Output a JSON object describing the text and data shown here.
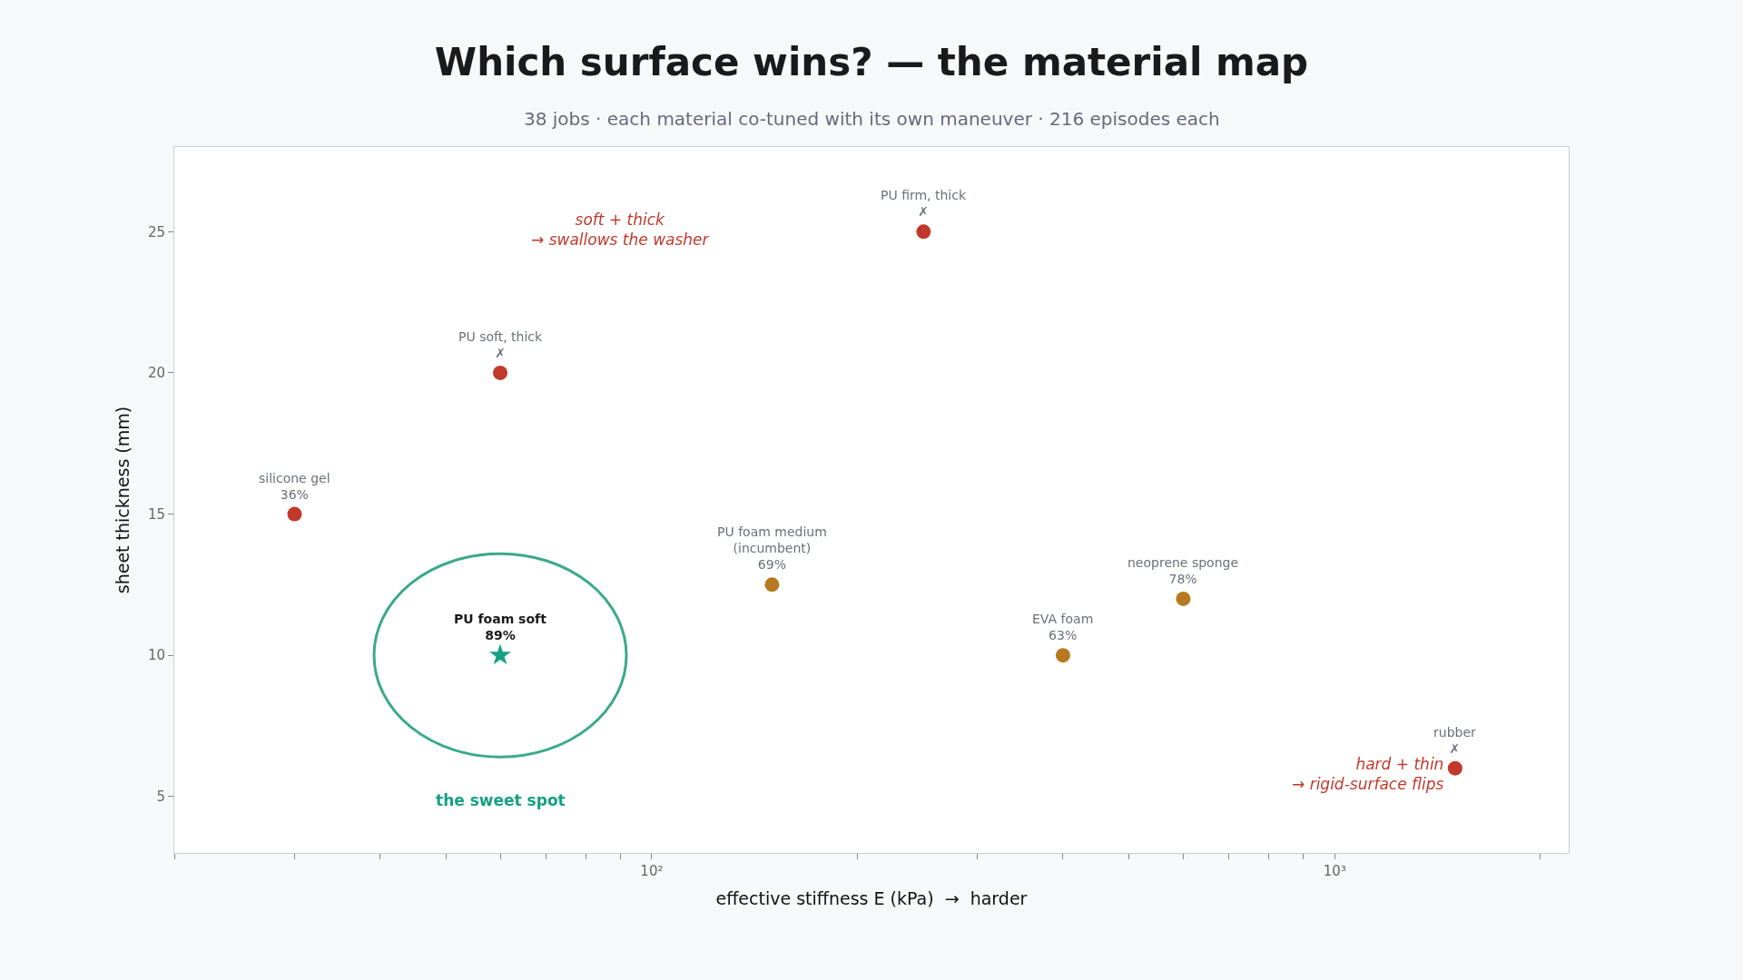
{
  "chart_data": {
    "type": "scatter",
    "title": "Which surface wins? — the material map",
    "subtitle": "38 jobs · each material co-tuned with its own maneuver · 216 episodes each",
    "xlabel": "effective stiffness E (kPa)  →  harder",
    "ylabel": "sheet thickness (mm)",
    "log": "x",
    "grid": false,
    "xlim": [
      20,
      2200
    ],
    "ylim": [
      3,
      28
    ],
    "xticks": [
      {
        "value": 20,
        "label": null
      },
      {
        "value": 30,
        "label": null
      },
      {
        "value": 40,
        "label": null
      },
      {
        "value": 50,
        "label": null
      },
      {
        "value": 60,
        "label": null
      },
      {
        "value": 70,
        "label": null
      },
      {
        "value": 80,
        "label": null
      },
      {
        "value": 90,
        "label": null
      },
      {
        "value": 100,
        "label": "10²"
      },
      {
        "value": 200,
        "label": null
      },
      {
        "value": 300,
        "label": null
      },
      {
        "value": 400,
        "label": null
      },
      {
        "value": 500,
        "label": null
      },
      {
        "value": 600,
        "label": null
      },
      {
        "value": 700,
        "label": null
      },
      {
        "value": 800,
        "label": null
      },
      {
        "value": 900,
        "label": null
      },
      {
        "value": 1000,
        "label": "10³"
      },
      {
        "value": 2000,
        "label": null
      }
    ],
    "yticks": [
      5,
      10,
      15,
      20,
      25
    ],
    "series": [
      {
        "color": "#c0392b",
        "marker": "circle",
        "x": [
          30,
          60,
          250,
          1500
        ],
        "values": [
          15,
          20,
          25,
          6
        ]
      },
      {
        "color": "#b7791f",
        "marker": "circle",
        "x": [
          150,
          400,
          600
        ],
        "values": [
          12.5,
          10,
          12
        ]
      },
      {
        "color": "#16a085",
        "marker": "star",
        "x": [
          60
        ],
        "values": [
          10
        ]
      }
    ],
    "annotations": [
      {
        "text": "silicone gel\n36%",
        "x": 30,
        "y": 15
      },
      {
        "text": "PU soft, thick\n✗",
        "x": 60,
        "y": 20
      },
      {
        "text": "PU firm, thick\n✗",
        "x": 250,
        "y": 25
      },
      {
        "text": "rubber\n✗",
        "x": 1500,
        "y": 6
      },
      {
        "text": "PU foam medium\n(incumbent)\n69%",
        "x": 150,
        "y": 12.5
      },
      {
        "text": "EVA foam\n63%",
        "x": 400,
        "y": 10
      },
      {
        "text": "neoprene sponge\n78%",
        "x": 600,
        "y": 12
      },
      {
        "text": "PU foam soft\n89%",
        "x": 60,
        "y": 10
      },
      "soft + thick\n→ swallows the washer",
      "hard + thin\n→ rigid-surface flips",
      "the sweet spot"
    ]
  }
}
